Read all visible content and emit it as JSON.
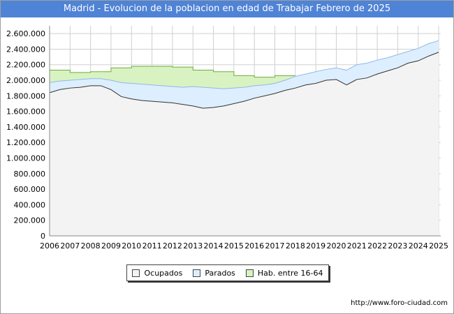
{
  "header": {
    "title": "Madrid - Evolucion de la poblacion en edad de Trabajar Febrero de 2025"
  },
  "footer": {
    "url": "http://www.foro-ciudad.com"
  },
  "colors": {
    "ocupados_fill": "#f3f3f3",
    "parados_fill": "#ddeeff",
    "hab_fill": "#d9f2c2",
    "ocupados_line": "#333333",
    "parados_line": "#90b8e8",
    "hab_line": "#6aae3b",
    "grid": "#d0d0d0"
  },
  "chart_data": {
    "type": "area",
    "title": "Madrid - Evolucion de la poblacion en edad de Trabajar Febrero de 2025",
    "xlabel": "",
    "ylabel": "",
    "xlim": [
      2006,
      2025.1
    ],
    "ylim": [
      0,
      2700000
    ],
    "x_ticks": [
      "2006",
      "2007",
      "2008",
      "2009",
      "2010",
      "2011",
      "2012",
      "2013",
      "2014",
      "2015",
      "2016",
      "2017",
      "2018",
      "2019",
      "2020",
      "2021",
      "2022",
      "2023",
      "2024",
      "2025"
    ],
    "y_ticks": [
      "0",
      "200.000",
      "400.000",
      "600.000",
      "800.000",
      "1.000.000",
      "1.200.000",
      "1.400.000",
      "1.600.000",
      "1.800.000",
      "2.000.000",
      "2.200.000",
      "2.400.000",
      "2.600.000"
    ],
    "y_tick_values": [
      0,
      200000,
      400000,
      600000,
      800000,
      1000000,
      1200000,
      1400000,
      1600000,
      1800000,
      2000000,
      2200000,
      2400000,
      2600000
    ],
    "legend": [
      {
        "name": "Ocupados",
        "key": "ocupados"
      },
      {
        "name": "Parados",
        "key": "parados"
      },
      {
        "name": "Hab. entre 16-64",
        "key": "hab"
      }
    ],
    "series": [
      {
        "name": "Ocupados",
        "x": [
          2006,
          2006.5,
          2007,
          2007.5,
          2008,
          2008.5,
          2009,
          2009.5,
          2010,
          2010.5,
          2011,
          2011.5,
          2012,
          2012.5,
          2013,
          2013.5,
          2014,
          2014.5,
          2015,
          2015.5,
          2016,
          2016.5,
          2017,
          2017.5,
          2018,
          2018.5,
          2019,
          2019.5,
          2020,
          2020.5,
          2021,
          2021.5,
          2022,
          2022.5,
          2023,
          2023.5,
          2024,
          2024.5,
          2025
        ],
        "values": [
          1840000,
          1880000,
          1900000,
          1910000,
          1930000,
          1930000,
          1880000,
          1790000,
          1760000,
          1740000,
          1730000,
          1720000,
          1710000,
          1690000,
          1670000,
          1640000,
          1650000,
          1670000,
          1700000,
          1730000,
          1770000,
          1800000,
          1830000,
          1870000,
          1900000,
          1940000,
          1960000,
          2000000,
          2010000,
          1940000,
          2010000,
          2030000,
          2080000,
          2120000,
          2160000,
          2220000,
          2250000,
          2310000,
          2360000
        ]
      },
      {
        "name": "Parados",
        "x": [
          2006,
          2006.5,
          2007,
          2007.5,
          2008,
          2008.5,
          2009,
          2009.5,
          2010,
          2010.5,
          2011,
          2011.5,
          2012,
          2012.5,
          2013,
          2013.5,
          2014,
          2014.5,
          2015,
          2015.5,
          2016,
          2016.5,
          2017,
          2017.5,
          2018,
          2018.5,
          2019,
          2019.5,
          2020,
          2020.5,
          2021,
          2021.5,
          2022,
          2022.5,
          2023,
          2023.5,
          2024,
          2024.5,
          2025
        ],
        "values": [
          1970000,
          1990000,
          2000000,
          2010000,
          2020000,
          2020000,
          2000000,
          1970000,
          1960000,
          1950000,
          1940000,
          1930000,
          1920000,
          1910000,
          1920000,
          1910000,
          1900000,
          1890000,
          1900000,
          1910000,
          1930000,
          1940000,
          1960000,
          2000000,
          2050000,
          2080000,
          2110000,
          2140000,
          2160000,
          2130000,
          2200000,
          2220000,
          2260000,
          2290000,
          2330000,
          2370000,
          2410000,
          2470000,
          2510000
        ]
      },
      {
        "name": "Hab. entre 16-64",
        "x": [
          2006,
          2007,
          2007.001,
          2008,
          2008.001,
          2009,
          2009.001,
          2010,
          2010.001,
          2011,
          2011.001,
          2012,
          2012.001,
          2013,
          2013.001,
          2014,
          2014.001,
          2015,
          2015.001,
          2016,
          2016.001,
          2017,
          2017.001,
          2018
        ],
        "values": [
          2130000,
          2130000,
          2100000,
          2100000,
          2110000,
          2110000,
          2160000,
          2160000,
          2180000,
          2180000,
          2180000,
          2180000,
          2170000,
          2170000,
          2130000,
          2130000,
          2110000,
          2110000,
          2060000,
          2060000,
          2040000,
          2040000,
          2060000,
          2060000
        ]
      }
    ]
  }
}
